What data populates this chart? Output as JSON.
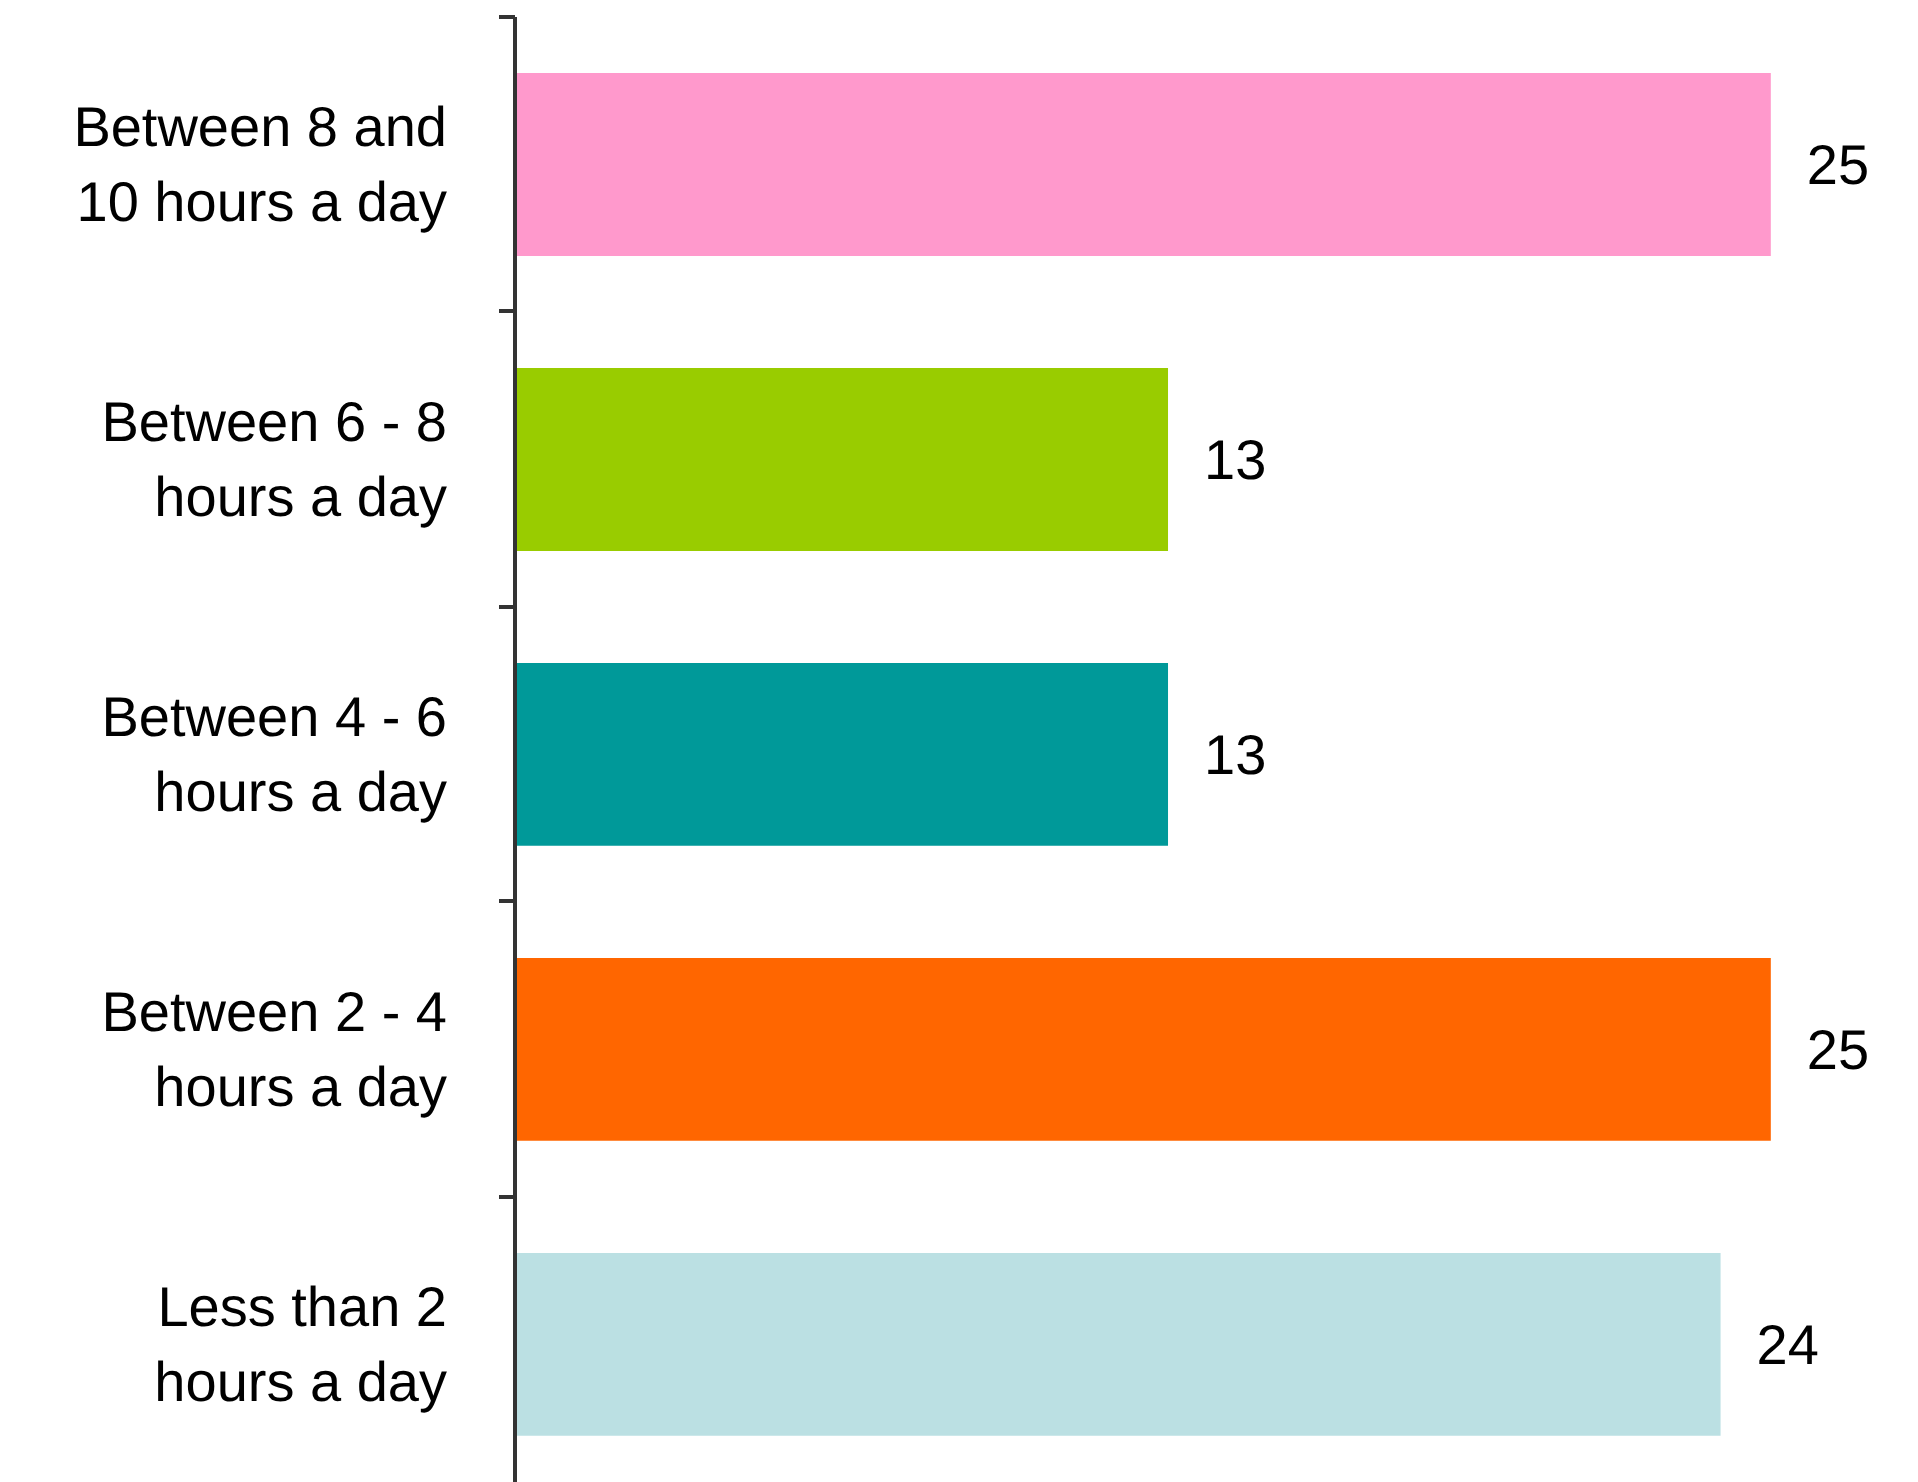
{
  "chart_data": {
    "type": "bar",
    "orientation": "horizontal",
    "categories": [
      "Between 8 and 10 hours a day",
      "Between 6 - 8 hours a day",
      "Between 4 - 6 hours a day",
      "Between 2 - 4 hours a day",
      "Less than 2 hours a day"
    ],
    "values": [
      25,
      13,
      13,
      25,
      24
    ],
    "colors": [
      "#ff99cc",
      "#99cc00",
      "#009999",
      "#ff6600",
      "#bbe0e3"
    ],
    "data_labels": true
  }
}
